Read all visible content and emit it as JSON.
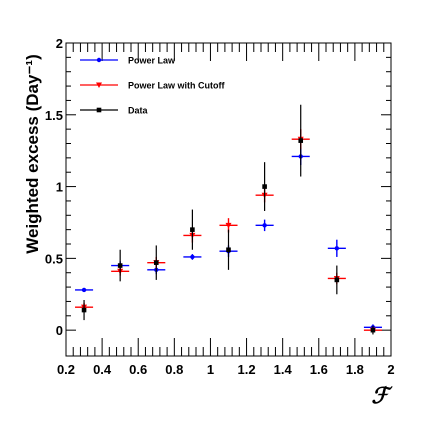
{
  "chart_data": {
    "type": "scatter",
    "xlabel": "ℱ",
    "ylabel": "Weighted excess (Day⁻¹)",
    "xlim": [
      0.2,
      2.0
    ],
    "ylim": [
      -0.18,
      2.0
    ],
    "x_ticks": [
      0.2,
      0.4,
      0.6,
      0.8,
      1.0,
      1.2,
      1.4,
      1.6,
      1.8,
      2.0
    ],
    "x_tick_labels": [
      "0.2",
      "0.4",
      "0.6",
      "0.8",
      "1",
      "1.2",
      "1.4",
      "1.6",
      "1.8",
      "2"
    ],
    "y_ticks": [
      0,
      0.5,
      1.0,
      1.5,
      2.0
    ],
    "y_tick_labels": [
      "0",
      "0.5",
      "1",
      "1.5",
      "2"
    ],
    "legend_position": "top-left",
    "grid": false,
    "series": [
      {
        "name": "Power Law",
        "color": "#0000ff",
        "marker": "circle",
        "x": [
          0.3,
          0.5,
          0.7,
          0.9,
          1.1,
          1.3,
          1.5,
          1.7,
          1.9
        ],
        "y": [
          0.28,
          0.45,
          0.42,
          0.51,
          0.55,
          0.73,
          1.21,
          0.57,
          0.02
        ],
        "xerr": [
          0.05,
          0.05,
          0.05,
          0.05,
          0.05,
          0.05,
          0.05,
          0.05,
          0.05
        ],
        "yerr": [
          0.0,
          0.03,
          0.03,
          0.02,
          0.04,
          0.04,
          0.06,
          0.06,
          0.02
        ]
      },
      {
        "name": "Power Law with Cutoff",
        "color": "#ff0000",
        "marker": "triangle-down",
        "x": [
          0.3,
          0.5,
          0.7,
          0.9,
          1.1,
          1.3,
          1.5,
          1.7,
          1.9
        ],
        "y": [
          0.16,
          0.41,
          0.47,
          0.66,
          0.73,
          0.94,
          1.33,
          0.36,
          0.0
        ],
        "xerr": [
          0.05,
          0.05,
          0.05,
          0.05,
          0.05,
          0.05,
          0.05,
          0.05,
          0.05
        ],
        "yerr": [
          0.03,
          0.03,
          0.04,
          0.05,
          0.05,
          0.05,
          0.07,
          0.04,
          0.0
        ]
      },
      {
        "name": "Data",
        "color": "#000000",
        "marker": "square",
        "x": [
          0.3,
          0.5,
          0.7,
          0.9,
          1.1,
          1.3,
          1.5,
          1.7,
          1.9
        ],
        "y": [
          0.14,
          0.45,
          0.47,
          0.7,
          0.56,
          1.0,
          1.32,
          0.35,
          0.0
        ],
        "xerr": [
          0.0,
          0.0,
          0.0,
          0.0,
          0.0,
          0.0,
          0.0,
          0.0,
          0.0
        ],
        "yerr": [
          0.07,
          0.11,
          0.12,
          0.14,
          0.14,
          0.17,
          0.25,
          0.1,
          0.03
        ]
      }
    ]
  }
}
